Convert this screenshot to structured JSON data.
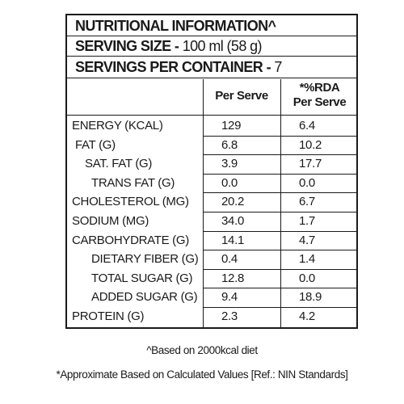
{
  "label": {
    "title": "NUTRITIONAL INFORMATION^",
    "serving_size_label": "SERVING SIZE -",
    "serving_size_value": "100 ml (58 g)",
    "servings_label": "SERVINGS PER CONTAINER -",
    "servings_value": "7",
    "col_per_serve": "Per Serve",
    "col_rda_line1": "*%RDA",
    "col_rda_line2": "Per Serve",
    "rows": [
      {
        "name": "ENERGY (KCAL)",
        "per_serve": "129",
        "rda": "6.4",
        "indent": 0
      },
      {
        "name": "FAT (G)",
        "per_serve": "6.8",
        "rda": "10.2",
        "indent": 1
      },
      {
        "name": "SAT. FAT (G)",
        "per_serve": "3.9",
        "rda": "17.7",
        "indent": 2
      },
      {
        "name": "TRANS FAT (G)",
        "per_serve": "0.0",
        "rda": "0.0",
        "indent": 3
      },
      {
        "name": "CHOLESTEROL (MG)",
        "per_serve": "20.2",
        "rda": "6.7",
        "indent": 0
      },
      {
        "name": "SODIUM (MG)",
        "per_serve": "34.0",
        "rda": "1.7",
        "indent": 0
      },
      {
        "name": "CARBOHYDRATE (G)",
        "per_serve": "14.1",
        "rda": "4.7",
        "indent": 0
      },
      {
        "name": "DIETARY FIBER (G)",
        "per_serve": "0.4",
        "rda": "1.4",
        "indent": 3
      },
      {
        "name": "TOTAL SUGAR (G)",
        "per_serve": "12.8",
        "rda": "0.0",
        "indent": 3
      },
      {
        "name": "ADDED SUGAR (G)",
        "per_serve": "9.4",
        "rda": "18.9",
        "indent": 3
      },
      {
        "name": "PROTEIN (G)",
        "per_serve": "2.3",
        "rda": "4.2",
        "indent": 0
      }
    ]
  },
  "footnotes": {
    "diet_basis": "^Based on 2000kcal diet",
    "approximation": "*Approximate Based on Calculated Values  [Ref.: NIN Standards]"
  }
}
